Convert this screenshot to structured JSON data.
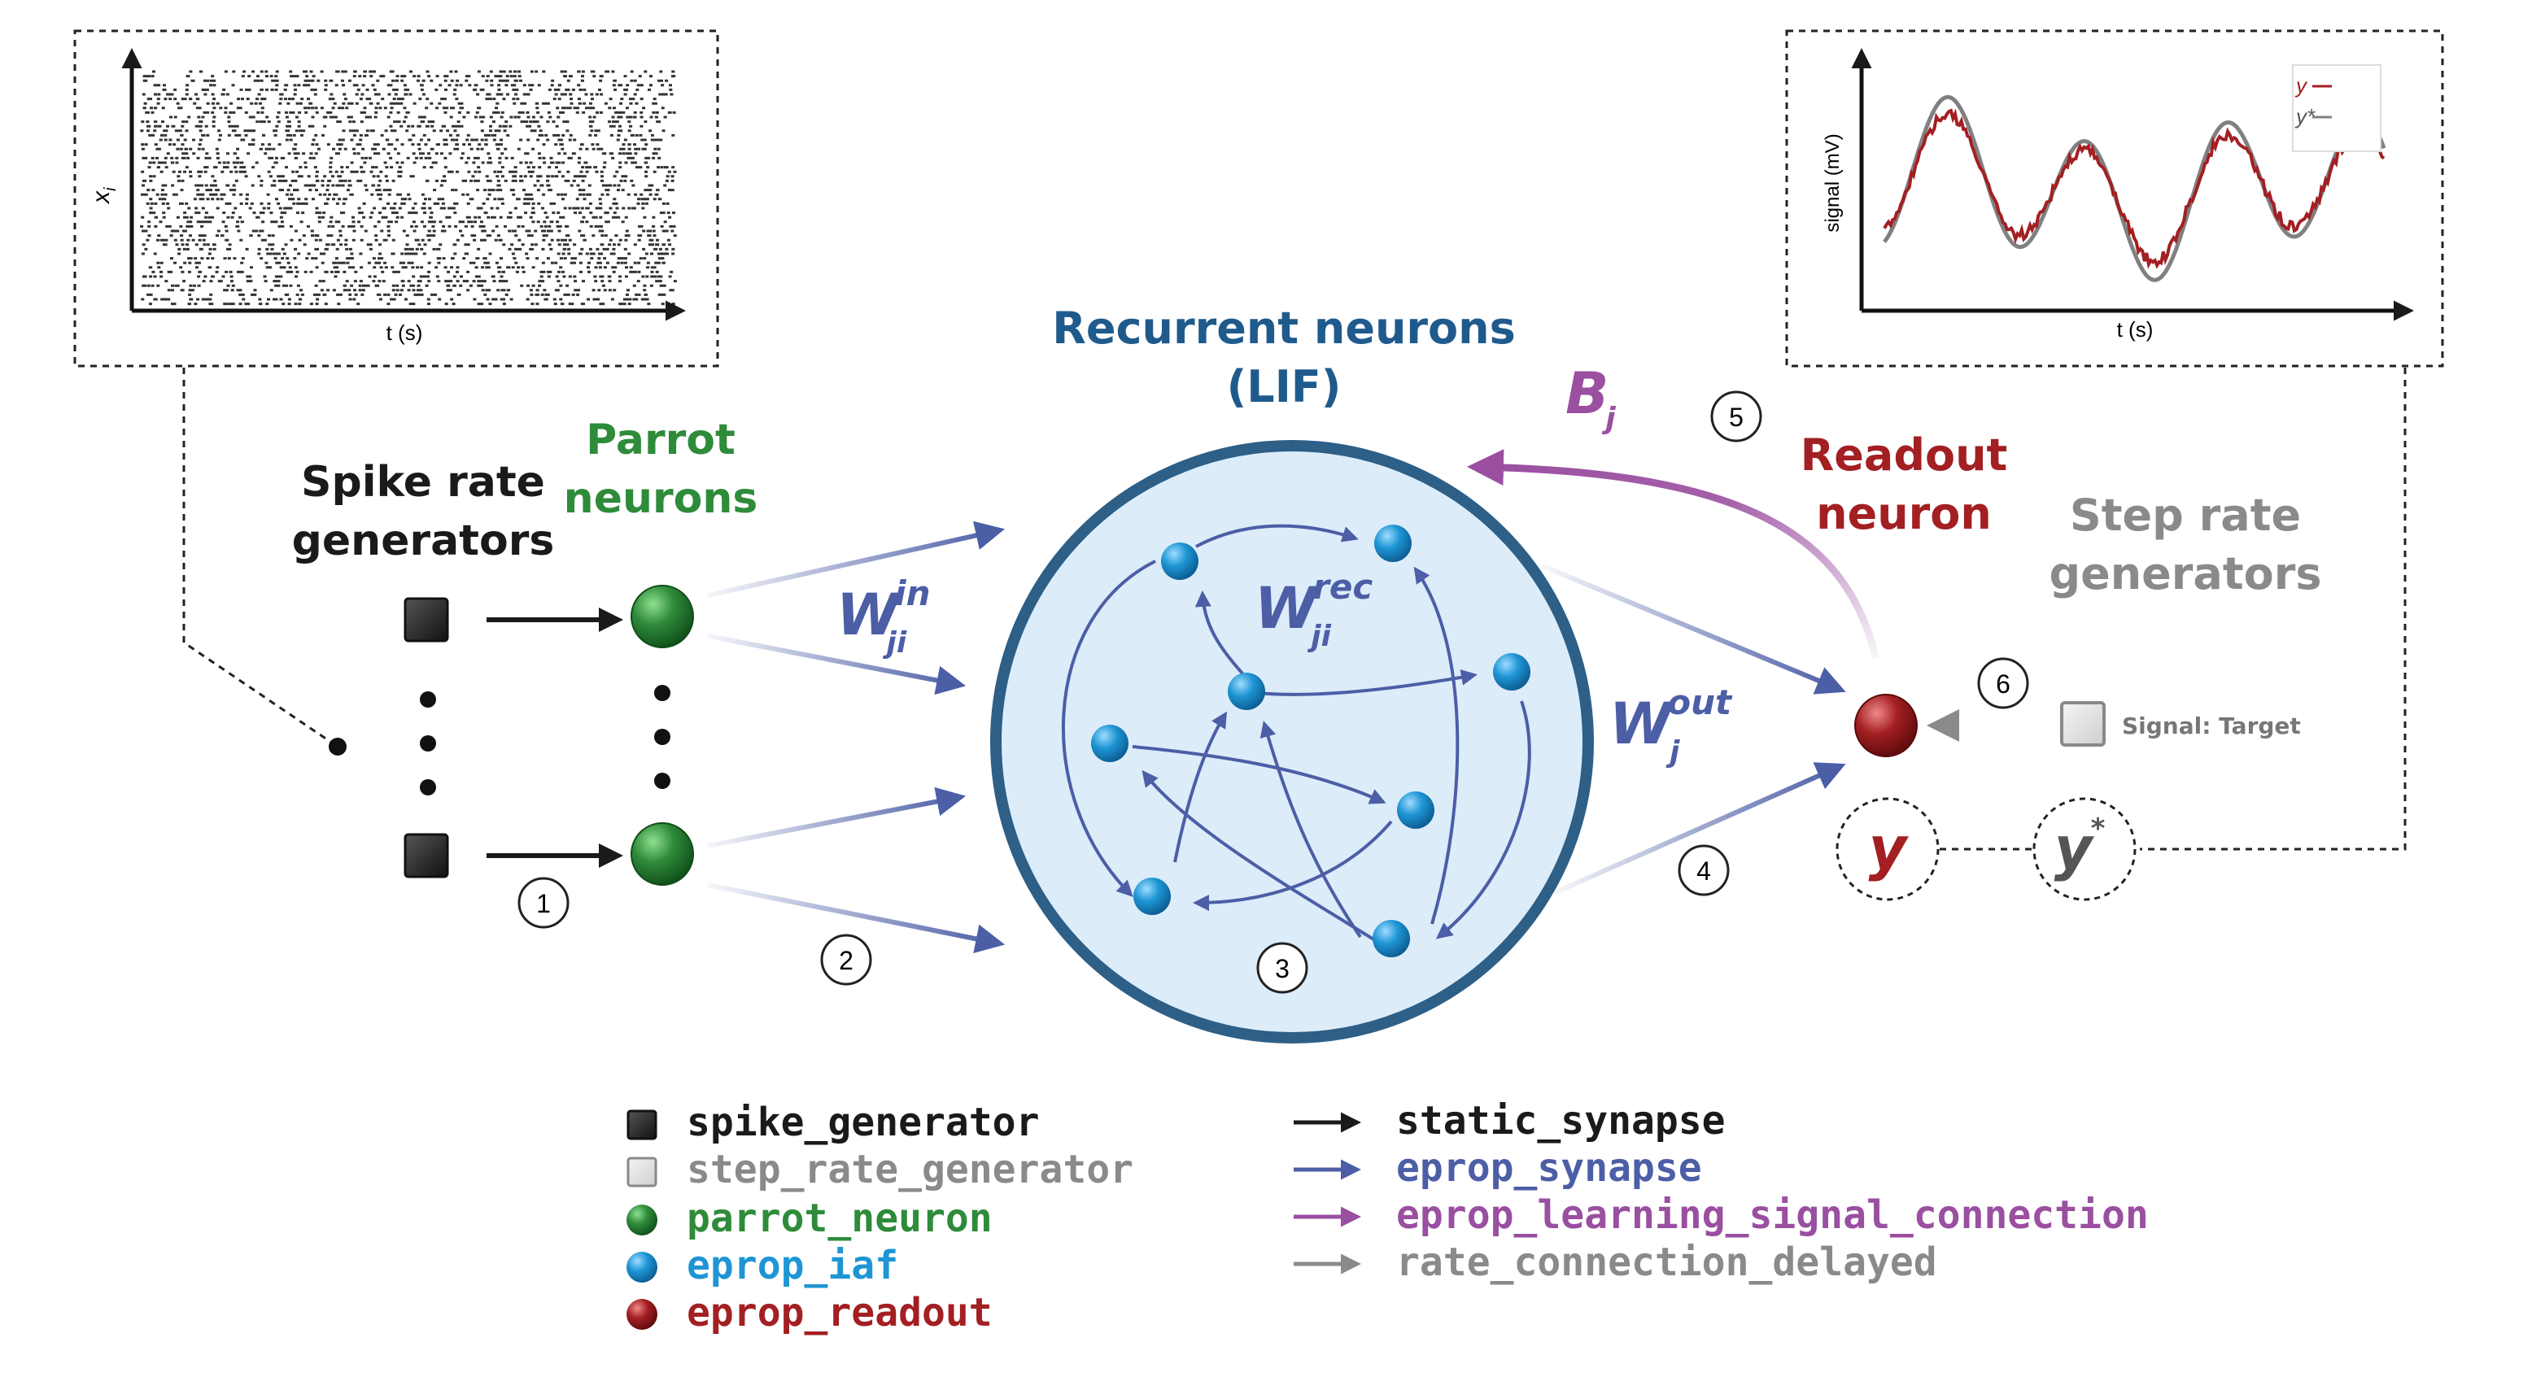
{
  "colors": {
    "black": "#1a1a1a",
    "grey": "#8a8a8a",
    "green": "#2e8b3a",
    "blue": "#1e95d4",
    "dark_red": "#a31f22",
    "synapse": "#4c5ea6",
    "learning": "#9a4fa0",
    "recurrent_title": "#1f5a8c",
    "circle_fill": "#dcecf9",
    "circle_stroke": "#2d5f87"
  },
  "labels": {
    "spike_rate_generators": [
      "Spike rate",
      "generators"
    ],
    "parrot_neurons": [
      "Parrot",
      "neurons"
    ],
    "recurrent_neurons": [
      "Recurrent neurons",
      "(LIF)"
    ],
    "readout_neuron": [
      "Readout",
      "neuron"
    ],
    "step_rate_generators": [
      "Step rate",
      "generators"
    ],
    "signal_target": "Signal: Target",
    "w_in": {
      "base": "W",
      "sub": "ji",
      "sup": "in"
    },
    "w_rec": {
      "base": "W",
      "sub": "ji",
      "sup": "rec"
    },
    "w_out": {
      "base": "W",
      "sub": "j",
      "sup": "out"
    },
    "b_j": {
      "base": "B",
      "sub": "j"
    },
    "y": "y",
    "y_star": {
      "base": "y",
      "sup": "*"
    }
  },
  "step_markers": [
    "1",
    "2",
    "3",
    "4",
    "5",
    "6"
  ],
  "raster_plot": {
    "xlabel": "t (s)",
    "ylabel": {
      "base": "x",
      "sub": "i"
    }
  },
  "signal_plot": {
    "xlabel": "t (s)",
    "ylabel": "signal (mV)",
    "legend": [
      "y",
      "y*"
    ]
  },
  "legend": {
    "nodes": [
      {
        "label": "spike_generator",
        "icon": "black-square-icon"
      },
      {
        "label": "step_rate_generator",
        "icon": "grey-square-icon"
      },
      {
        "label": "parrot_neuron",
        "icon": "green-sphere-icon"
      },
      {
        "label": "eprop_iaf",
        "icon": "blue-sphere-icon"
      },
      {
        "label": "eprop_readout",
        "icon": "red-sphere-icon"
      }
    ],
    "connections": [
      {
        "label": "static_synapse",
        "icon": "black-arrow-icon"
      },
      {
        "label": "eprop_synapse",
        "icon": "blue-arrow-icon"
      },
      {
        "label": "eprop_learning_signal_connection",
        "icon": "purple-arrow-icon"
      },
      {
        "label": "rate_connection_delayed",
        "icon": "grey-arrow-icon"
      }
    ]
  }
}
